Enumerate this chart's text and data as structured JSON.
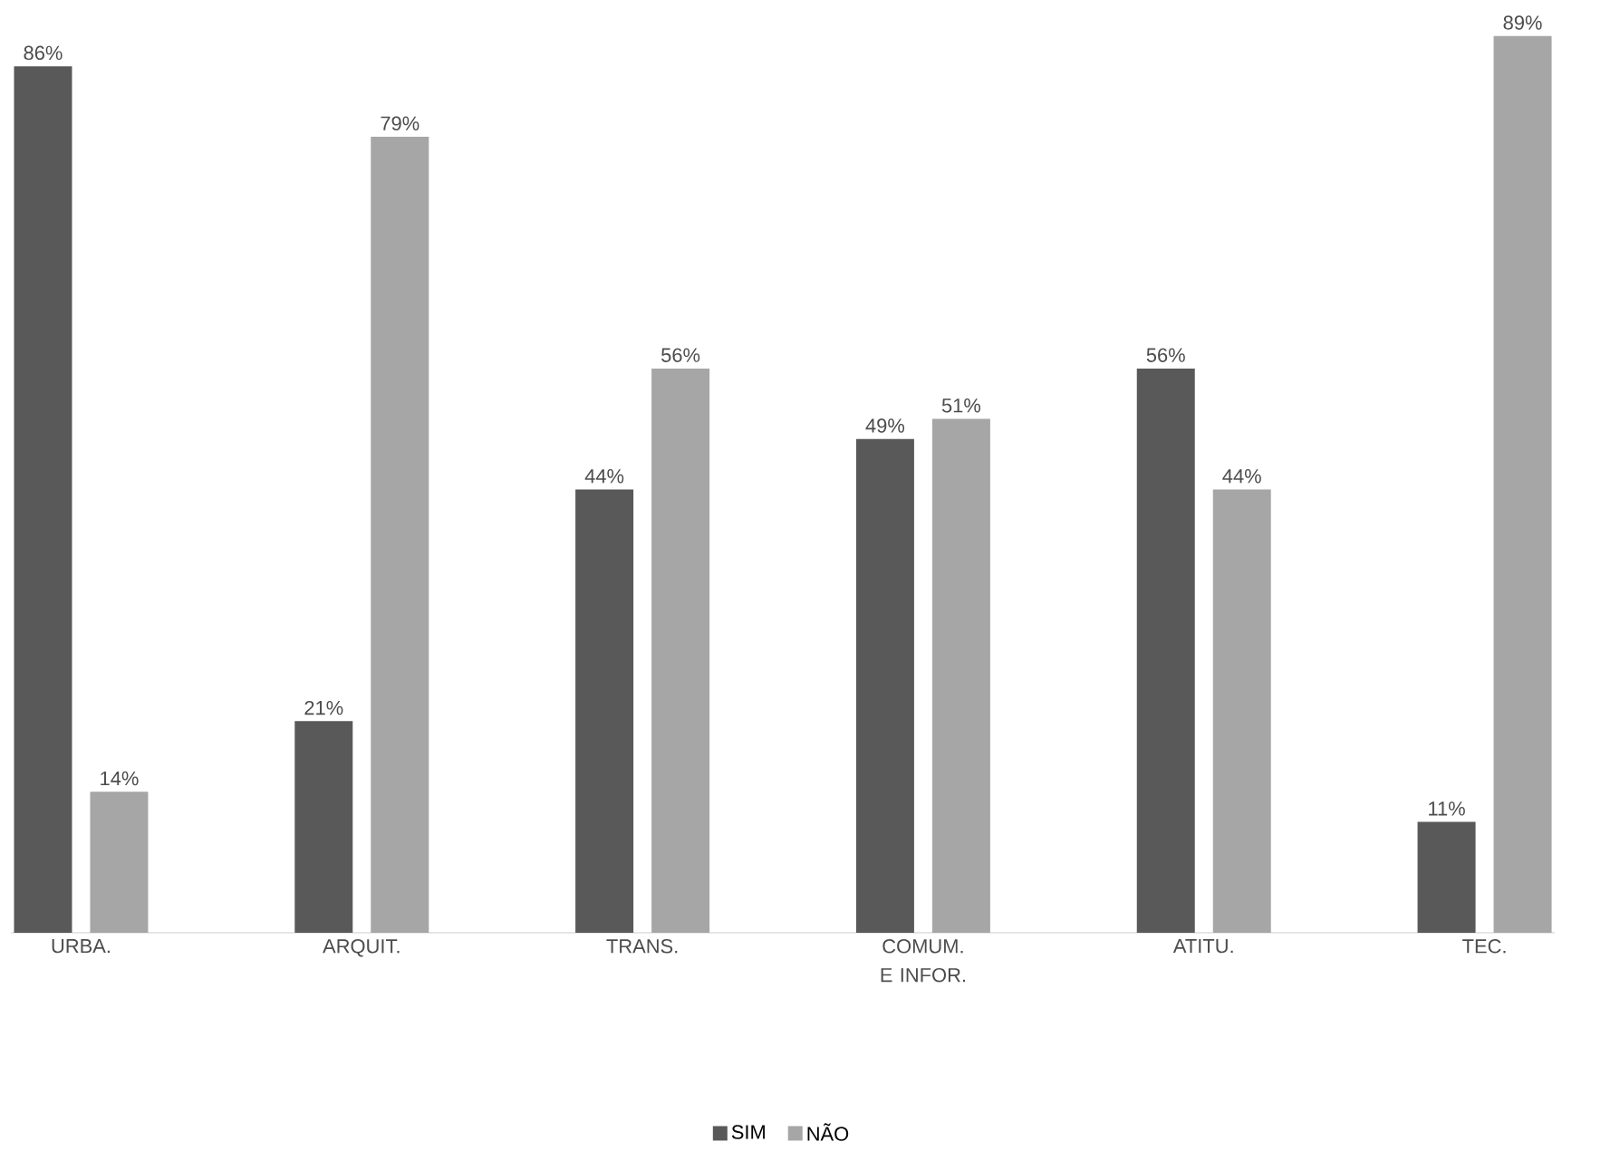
{
  "chart_data": {
    "type": "bar",
    "categories": [
      "URBA.",
      "ARQUIT.",
      "TRANS.",
      "COMUM. E INFOR.",
      "ATITU.",
      "TEC."
    ],
    "series": [
      {
        "name": "SIM",
        "color": "#595959",
        "values": [
          86,
          21,
          44,
          49,
          56,
          11
        ],
        "value_labels": [
          "86%",
          "21%",
          "44%",
          "49%",
          "56%",
          "11%"
        ]
      },
      {
        "name": "NÃO",
        "color": "#a6a6a6",
        "values": [
          14,
          79,
          56,
          51,
          44,
          89
        ],
        "value_labels": [
          "14%",
          "79%",
          "56%",
          "51%",
          "44%",
          "89%"
        ]
      }
    ],
    "legend": "bottom"
  }
}
